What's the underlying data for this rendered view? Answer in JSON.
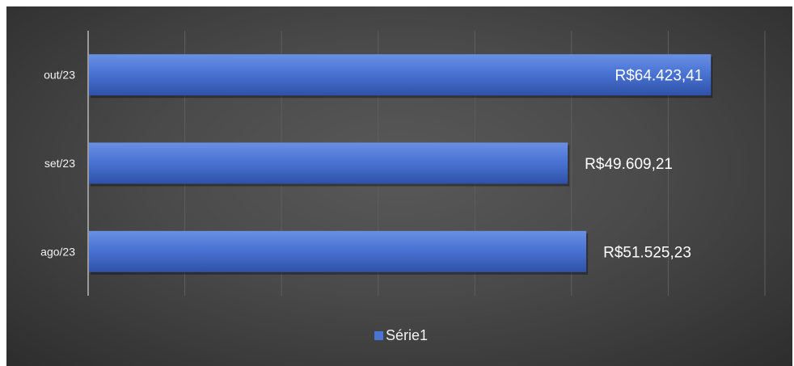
{
  "chart_data": {
    "type": "bar",
    "orientation": "horizontal",
    "categories": [
      "out/23",
      "set/23",
      "ago/23"
    ],
    "series": [
      {
        "name": "Série1",
        "values": [
          64423.41,
          49609.21,
          51525.23
        ],
        "labels": [
          "R$64.423,41",
          "R$49.609,21",
          "R$51.525,23"
        ]
      }
    ],
    "xlim": [
      0,
      70000
    ],
    "x_gridlines": [
      0,
      10000,
      20000,
      30000,
      40000,
      50000,
      60000,
      70000
    ],
    "grid": true,
    "legend_position": "bottom",
    "colors": {
      "bar_light": "#5b84dc",
      "bar_dark": "#3357b0",
      "axis": "#9a9a9a",
      "gridline": "#5e5e5e"
    }
  }
}
